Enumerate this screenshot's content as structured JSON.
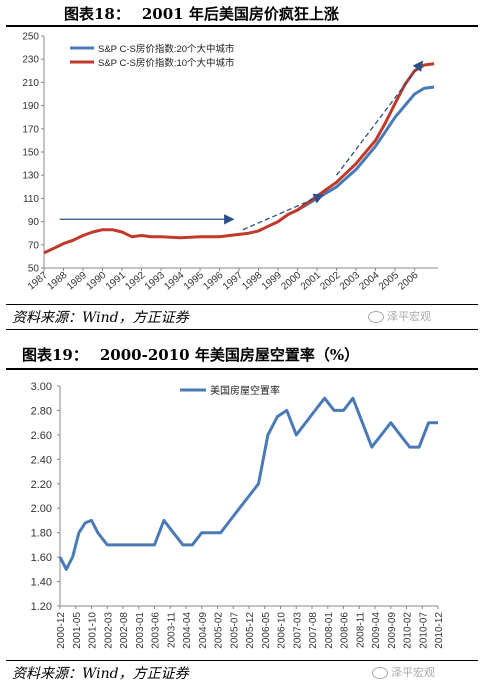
{
  "figures": [
    {
      "number_label": "图表18：",
      "title": "2001 年后美国房价疯狂上涨",
      "source": "资料来源：Wind，方正证券"
    },
    {
      "number_label": "图表19：",
      "title": "2000-2010 年美国房屋空置率（%）",
      "source": "资料来源：Wind，方正证券"
    }
  ],
  "watermark": "泽平宏观",
  "chart_data": [
    {
      "type": "line",
      "title": "",
      "xlabel": "",
      "ylabel": "",
      "ylim": [
        50,
        250
      ],
      "yticks": [
        50,
        70,
        90,
        110,
        130,
        150,
        170,
        190,
        210,
        230,
        250
      ],
      "x_labels": [
        "1987",
        "1988",
        "1989",
        "1990",
        "1991",
        "1992",
        "1993",
        "1994",
        "1995",
        "1996",
        "1997",
        "1998",
        "1999",
        "2000",
        "2001",
        "2002",
        "2003",
        "2004",
        "2005",
        "2006"
      ],
      "xlim": [
        1987,
        2007.2
      ],
      "grid": false,
      "legend_position": "top-left",
      "series": [
        {
          "name": "S&P C-S房价指数:20个大中城市",
          "color": "#4a7ab5",
          "x": [
            2000.0,
            2001.0,
            2002.0,
            2003.0,
            2004.0,
            2005.0,
            2006.0,
            2006.5,
            2007.0
          ],
          "y": [
            100,
            110,
            120,
            135,
            155,
            180,
            200,
            205,
            206
          ]
        },
        {
          "name": "S&P C-S房价指数:10个大中城市",
          "color": "#c0392b",
          "x": [
            1987.0,
            1987.5,
            1988.0,
            1988.5,
            1989.0,
            1989.5,
            1990.0,
            1990.5,
            1991.0,
            1991.5,
            1992.0,
            1992.5,
            1993.0,
            1994.0,
            1995.0,
            1996.0,
            1997.0,
            1997.5,
            1998.0,
            1998.5,
            1999.0,
            1999.5,
            2000.0,
            2000.5,
            2001.0,
            2001.5,
            2002.0,
            2002.5,
            2003.0,
            2003.5,
            2004.0,
            2004.5,
            2005.0,
            2005.5,
            2006.0,
            2006.5,
            2007.0
          ],
          "y": [
            63,
            67,
            71,
            74,
            78,
            81,
            83,
            83,
            81,
            77,
            78,
            77,
            77,
            76,
            77,
            77,
            79,
            80,
            82,
            86,
            90,
            96,
            100,
            106,
            112,
            118,
            124,
            132,
            140,
            150,
            160,
            175,
            192,
            208,
            220,
            225,
            226
          ]
        }
      ],
      "annotations": [
        {
          "kind": "arrow",
          "from": [
            1987.8,
            92
          ],
          "to": [
            1996.7,
            92
          ],
          "color": "#2e4f8a"
        },
        {
          "kind": "arrow",
          "from": [
            1997.2,
            83
          ],
          "to": [
            2001.3,
            113
          ],
          "color": "#2e4f8a"
        },
        {
          "kind": "arrow",
          "from": [
            2002.0,
            130
          ],
          "to": [
            2006.4,
            228
          ],
          "color": "#2e4f8a"
        }
      ]
    },
    {
      "type": "line",
      "title": "",
      "xlabel": "",
      "ylabel": "",
      "ylim": [
        1.2,
        3.0
      ],
      "yticks": [
        "1.20",
        "1.40",
        "1.60",
        "1.80",
        "2.00",
        "2.20",
        "2.40",
        "2.60",
        "2.80",
        "3.00"
      ],
      "x_labels": [
        "2000-12",
        "2001-05",
        "2001-10",
        "2002-03",
        "2002-08",
        "2003-01",
        "2003-06",
        "2003-11",
        "2004-04",
        "2004-09",
        "2005-02",
        "2005-07",
        "2005-12",
        "2006-05",
        "2006-10",
        "2007-03",
        "2007-08",
        "2008-01",
        "2008-06",
        "2008-11",
        "2009-04",
        "2009-09",
        "2010-02",
        "2010-07",
        "2010-12"
      ],
      "x_range_months": [
        0,
        120
      ],
      "grid": false,
      "legend_position": "top-left",
      "series": [
        {
          "name": "美国房屋空置率",
          "color": "#4a7ab5",
          "x_months": [
            0,
            2,
            4,
            6,
            8,
            10,
            12,
            15,
            18,
            21,
            24,
            27,
            30,
            33,
            36,
            39,
            42,
            45,
            48,
            51,
            54,
            57,
            60,
            63,
            66,
            69,
            72,
            75,
            78,
            81,
            84,
            87,
            90,
            93,
            96,
            99,
            102,
            105,
            108,
            111,
            114,
            117,
            120
          ],
          "y": [
            1.6,
            1.5,
            1.6,
            1.8,
            1.88,
            1.9,
            1.8,
            1.7,
            1.7,
            1.7,
            1.7,
            1.7,
            1.7,
            1.9,
            1.8,
            1.7,
            1.7,
            1.8,
            1.8,
            1.8,
            1.9,
            2.0,
            2.1,
            2.2,
            2.6,
            2.75,
            2.8,
            2.6,
            2.7,
            2.8,
            2.9,
            2.8,
            2.8,
            2.9,
            2.7,
            2.5,
            2.6,
            2.7,
            2.6,
            2.5,
            2.5,
            2.7,
            2.7
          ]
        }
      ]
    }
  ]
}
